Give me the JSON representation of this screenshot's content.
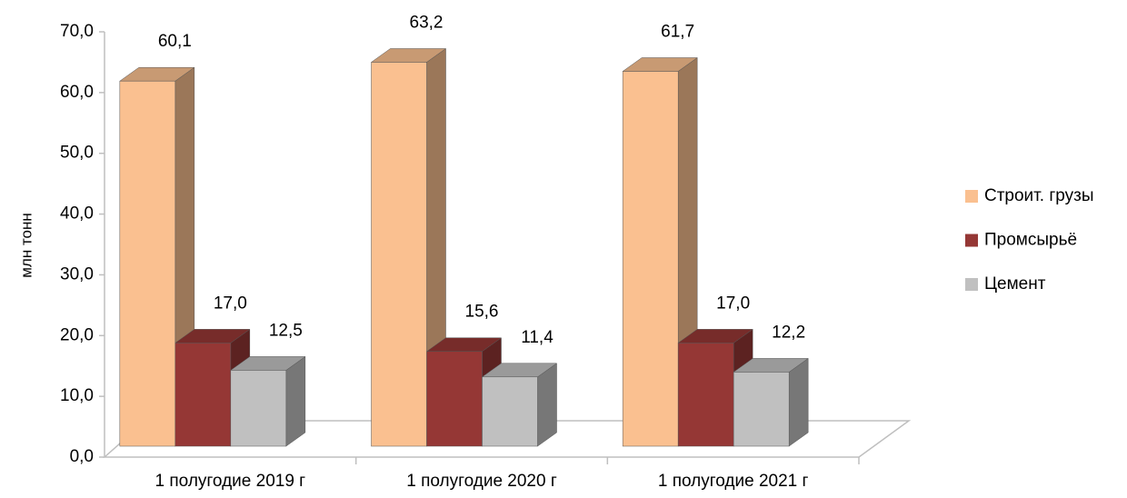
{
  "chart_data": {
    "type": "bar3d",
    "y_axis_label": "млн тонн",
    "categories": [
      "1 полугодие 2019 г",
      "1 полугодие 2020 г",
      "1 полугодие 2021 г"
    ],
    "series": [
      {
        "name": "Строит. грузы",
        "color": "#FAC090",
        "values": [
          60.1,
          63.2,
          61.7
        ],
        "value_labels": [
          "60,1",
          "63,2",
          "61,7"
        ]
      },
      {
        "name": "Промсырьё",
        "color": "#953735",
        "values": [
          17.0,
          15.6,
          17.0
        ],
        "value_labels": [
          "17,0",
          "15,6",
          "17,0"
        ]
      },
      {
        "name": "Цемент",
        "color": "#C0C0C0",
        "values": [
          12.5,
          11.4,
          12.2
        ],
        "value_labels": [
          "12,5",
          "11,4",
          "12,2"
        ]
      }
    ],
    "ylim": [
      0,
      70
    ],
    "yticks": [
      {
        "value": 0,
        "label": "0,0"
      },
      {
        "value": 10,
        "label": "10,0"
      },
      {
        "value": 20,
        "label": "20,0"
      },
      {
        "value": 30,
        "label": "30,0"
      },
      {
        "value": 40,
        "label": "40,0"
      },
      {
        "value": 50,
        "label": "50,0"
      },
      {
        "value": 60,
        "label": "60,0"
      },
      {
        "value": 70,
        "label": "70,0"
      }
    ],
    "legend": "right"
  }
}
